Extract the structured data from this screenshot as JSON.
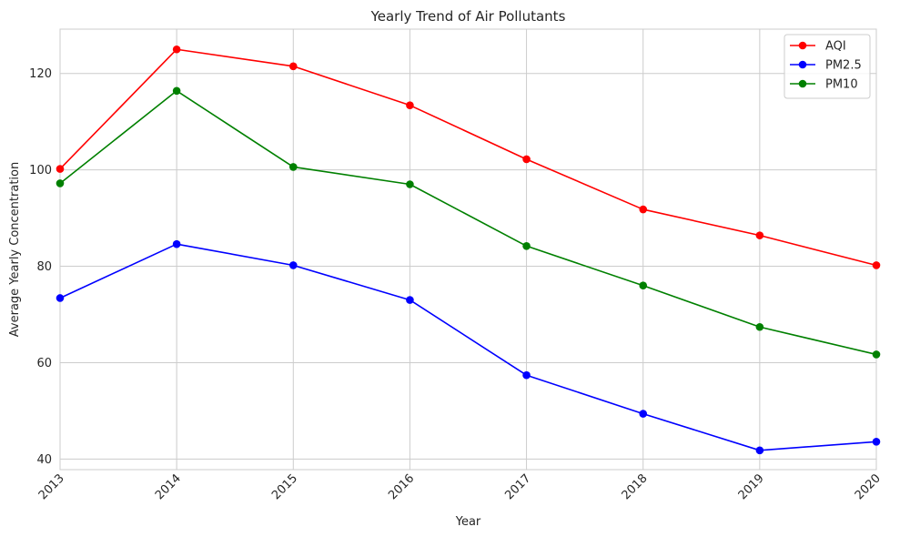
{
  "chart_data": {
    "type": "line",
    "title": "Yearly Trend of Air Pollutants",
    "xlabel": "Year",
    "ylabel": "Average Yearly Concentration",
    "x": [
      2013,
      2014,
      2015,
      2016,
      2017,
      2018,
      2019,
      2020
    ],
    "x_tick_labels": [
      "2013",
      "2014",
      "2015",
      "2016",
      "2017",
      "2018",
      "2019",
      "2020"
    ],
    "y_ticks": [
      40,
      60,
      80,
      100,
      120
    ],
    "y_tick_labels": [
      "40",
      "60",
      "80",
      "100",
      "120"
    ],
    "xlim": [
      2013,
      2020
    ],
    "ylim": [
      37.8,
      129.2
    ],
    "grid": true,
    "legend_position": "top-right",
    "series": [
      {
        "name": "AQI",
        "color": "#ff0000",
        "values": [
          100.2,
          125.0,
          121.5,
          113.4,
          102.2,
          91.8,
          86.4,
          80.2
        ]
      },
      {
        "name": "PM2.5",
        "color": "#0000ff",
        "values": [
          73.4,
          84.6,
          80.2,
          73.0,
          57.4,
          49.4,
          41.8,
          43.6
        ]
      },
      {
        "name": "PM10",
        "color": "#008000",
        "values": [
          97.2,
          116.4,
          100.6,
          97.0,
          84.2,
          76.0,
          67.4,
          61.7
        ]
      }
    ]
  }
}
